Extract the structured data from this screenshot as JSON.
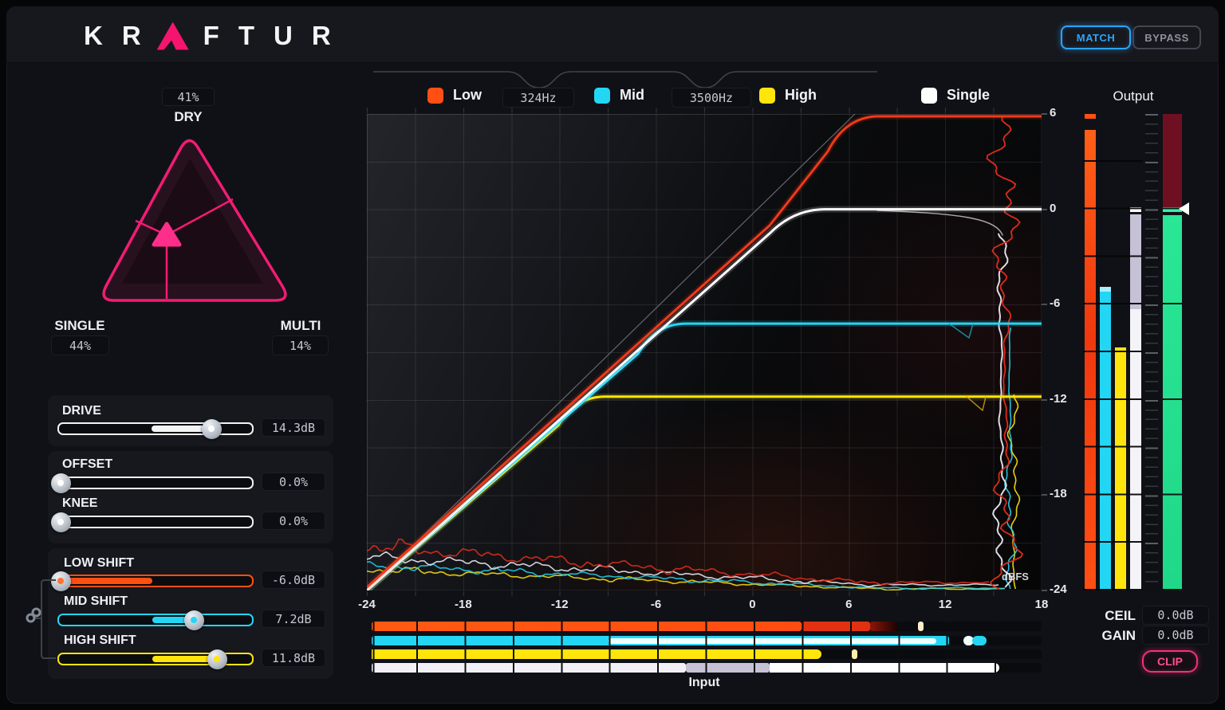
{
  "topbar": {
    "logo_left": "KR",
    "logo_right": "FTUR",
    "match": "MATCH",
    "bypass": "BYPASS"
  },
  "pad": {
    "dry_label": "DRY",
    "dry_value": "41%",
    "single_label": "SINGLE",
    "single_value": "44%",
    "multi_label": "MULTI",
    "multi_value": "14%"
  },
  "sliders": {
    "drive": {
      "label": "DRIVE",
      "value": "14.3dB"
    },
    "offset": {
      "label": "OFFSET",
      "value": "0.0%"
    },
    "knee": {
      "label": "KNEE",
      "value": "0.0%"
    },
    "low_shift": {
      "label": "LOW SHIFT",
      "value": "-6.0dB"
    },
    "mid_shift": {
      "label": "MID SHIFT",
      "value": "7.2dB"
    },
    "high_shift": {
      "label": "HIGH SHIFT",
      "value": "11.8dB"
    }
  },
  "legend": {
    "low": "Low",
    "low_freq": "324Hz",
    "mid": "Mid",
    "mid_freq": "3500Hz",
    "high": "High",
    "single": "Single"
  },
  "graph": {
    "x_ticks": [
      "-24",
      "-18",
      "-12",
      "-6",
      "0",
      "6",
      "12",
      "18"
    ],
    "y_ticks": [
      "6",
      "0",
      "-6",
      "-12",
      "-18",
      "-24"
    ],
    "unit": "dBFS",
    "x_label": "Input"
  },
  "output": {
    "title": "Output",
    "ceil_label": "CEIL",
    "ceil_value": "0.0dB",
    "gain_label": "GAIN",
    "gain_value": "0.0dB",
    "clip": "CLIP"
  },
  "colors": {
    "low": "#ff4f13",
    "low_deep": "#e23110",
    "mid": "#23d6f4",
    "high": "#ffe50c",
    "single": "#ffffff",
    "lavender": "#c7c1d6",
    "accent_pink": "#f5146e",
    "clip_pink": "#f5307c",
    "match_blue": "#2ca4ff",
    "meter_green": "#27e392",
    "meter_maroon": "#6e1022"
  },
  "viz": {
    "pad_mix": {
      "dry": 0.41,
      "single": 0.44,
      "multi": 0.14
    },
    "slider_state": {
      "drive": {
        "handle": 0.79,
        "fill": [
          0.48,
          0.79
        ]
      },
      "offset": {
        "handle": 0.01,
        "fill": null
      },
      "knee": {
        "handle": 0.01,
        "fill": null
      },
      "low": {
        "handle": 0.01,
        "fill": [
          0.0,
          0.485
        ]
      },
      "mid": {
        "handle": 0.7,
        "fill": [
          0.485,
          0.7
        ]
      },
      "high": {
        "handle": 0.82,
        "fill": [
          0.485,
          0.82
        ]
      }
    },
    "transfer_curves": {
      "ceilings_db": {
        "low": 5.8,
        "single": 0.0,
        "mid": -7.2,
        "high": -11.8
      },
      "knee_inputs_db": {
        "low": 5.0,
        "single": 1.0,
        "mid": -6.0,
        "high": -11.0
      },
      "input_range_db": [
        -24,
        18
      ],
      "output_range_db": [
        -24,
        6
      ]
    },
    "output_meters": {
      "low": {
        "level_db": 5.0,
        "peak_db": 6.0
      },
      "mid": {
        "level_db": -4.9
      },
      "high": {
        "level_db": -8.7
      },
      "single": {
        "level_db": 0.0,
        "soft_below_db": -6.3
      },
      "main": {
        "level_db": 0.0,
        "ceiling_db": 0.0
      }
    },
    "input_meters": {
      "low": {
        "solid": [
          0,
          0.642
        ],
        "hot": [
          0.642,
          0.744
        ],
        "fade": [
          0.744,
          0.786
        ],
        "peak": 0.815
      },
      "mid": {
        "solid": [
          0,
          0.35
        ],
        "core": [
          0.35,
          0.845
        ],
        "cap": [
          0.845,
          0.862
        ],
        "blob": [
          0.883,
          0.918
        ]
      },
      "high": {
        "solid": [
          0,
          0.671
        ],
        "peak": 0.717
      },
      "single": {
        "solid": [
          0,
          0.469
        ],
        "soft": [
          0.469,
          0.594
        ],
        "solid2": [
          0.594,
          0.937
        ]
      }
    }
  }
}
